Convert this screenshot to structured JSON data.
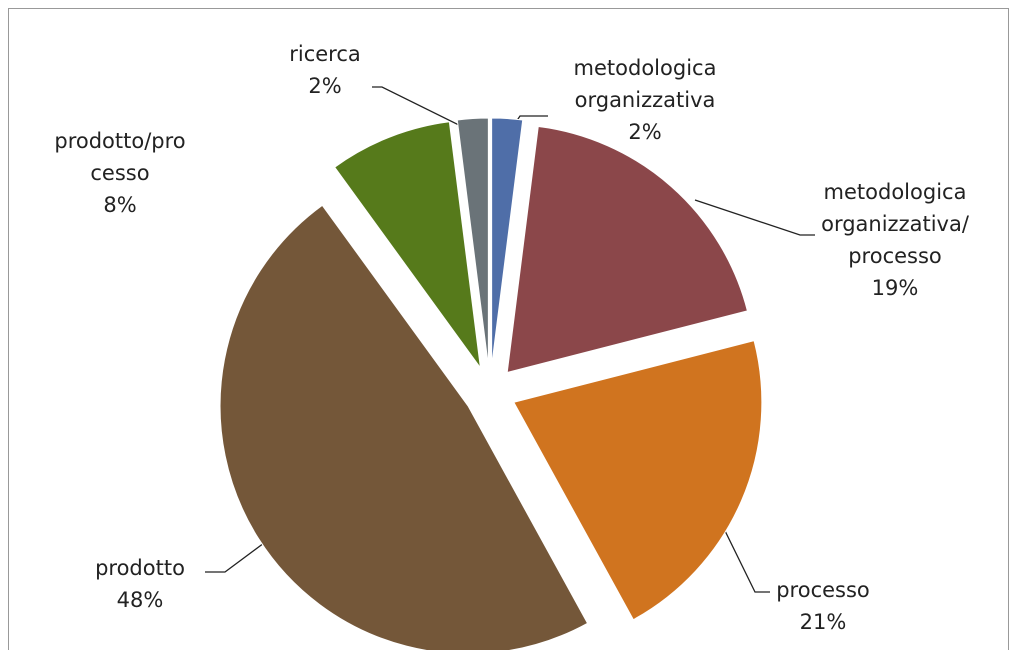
{
  "chart_data": {
    "type": "pie",
    "categories": [
      "metodologica\norganizzativa",
      "metodologica\norganizzativa/\nprocesso",
      "processo",
      "prodotto",
      "prodotto/pro\ncesso",
      "ricerca"
    ],
    "values": [
      2,
      19,
      21,
      48,
      8,
      2
    ],
    "value_labels": [
      "2%",
      "19%",
      "21%",
      "48%",
      "8%",
      "2%"
    ],
    "colors": [
      "#4f6ea8",
      "#8b474a",
      "#d0741f",
      "#745739",
      "#567a1b",
      "#6a7378"
    ]
  }
}
